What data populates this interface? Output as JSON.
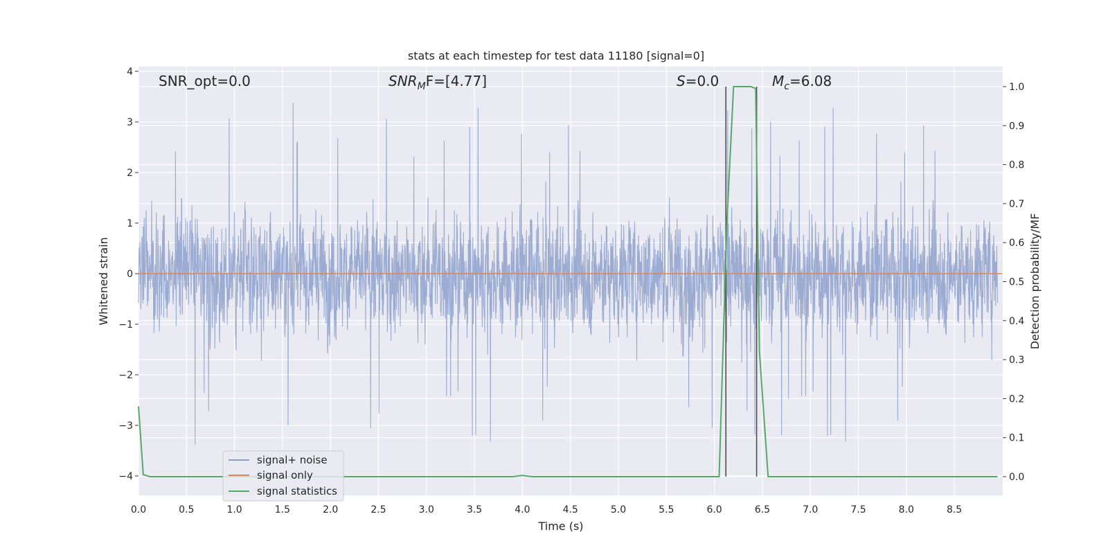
{
  "chart_data": {
    "type": "line",
    "title": "stats at each timestep for test data 11180 [signal=0]",
    "xlabel": "Time (s)",
    "ylabel_left": "Whitened strain",
    "ylabel_right": "Detection probability/MF",
    "xlim": [
      0.0,
      9.0
    ],
    "ylim_left": [
      -4.4,
      4.1
    ],
    "ylim_right": [
      -0.045,
      1.045
    ],
    "x_ticks": [
      "0.0",
      "0.5",
      "1.0",
      "1.5",
      "2.0",
      "2.5",
      "3.0",
      "3.5",
      "4.0",
      "4.5",
      "5.0",
      "5.5",
      "6.0",
      "6.5",
      "7.0",
      "7.5",
      "8.0",
      "8.5"
    ],
    "y_left_ticks": [
      "−4",
      "−3",
      "−2",
      "−1",
      "0",
      "1",
      "2",
      "3",
      "4"
    ],
    "y_right_ticks": [
      "0.0",
      "0.1",
      "0.2",
      "0.3",
      "0.4",
      "0.5",
      "0.6",
      "0.7",
      "0.8",
      "0.9",
      "1.0"
    ],
    "grid": true,
    "legend_position": "lower-left",
    "annotations": {
      "snr_opt": "SNR_opt=0.0",
      "snr_mf_a": "SNR",
      "snr_mf_sub": "M",
      "snr_mf_b": "F=[4.77]",
      "s_a": "S",
      "s_b": "=0.0",
      "mc_a": "M",
      "mc_sub": "c",
      "mc_b": "=6.08"
    },
    "series": [
      {
        "name": "signal+ noise",
        "axis": "left",
        "color": "#8da0cb",
        "description_values": "whitened noise envelope, roughly within [-4, 3.7]",
        "envelope": {
          "upper_typical": 1.4,
          "upper_max": 3.7,
          "lower_typical": -1.5,
          "lower_min": -4.0
        }
      },
      {
        "name": "signal only",
        "axis": "left",
        "color": "#dd8452",
        "x": [
          0.0,
          9.0
        ],
        "y": [
          0.0,
          0.0
        ]
      },
      {
        "name": "signal statistics",
        "axis": "right",
        "color": "#55a868",
        "x": [
          0.0,
          0.05,
          0.12,
          3.9,
          4.0,
          4.1,
          6.05,
          6.13,
          6.2,
          6.38,
          6.43,
          6.47,
          6.56,
          8.95
        ],
        "y": [
          0.18,
          0.005,
          0.0,
          0.0,
          0.003,
          0.0,
          0.0,
          0.65,
          1.0,
          1.0,
          0.995,
          0.32,
          0.0,
          0.0
        ]
      }
    ],
    "vertical_markers": [
      6.12,
      6.44
    ],
    "marker_color": "#4d4d4d"
  }
}
